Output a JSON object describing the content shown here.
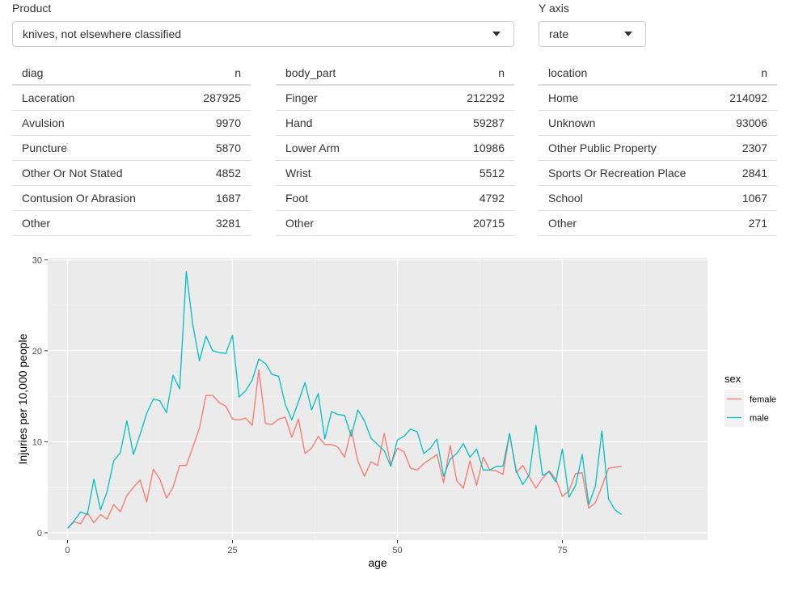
{
  "product": {
    "label": "Product",
    "value": "knives, not elsewhere classified"
  },
  "yaxis": {
    "label": "Y axis",
    "value": "rate"
  },
  "tables": [
    {
      "col1": "diag",
      "col2": "n",
      "rows": [
        {
          "name": "Laceration",
          "n": "287925"
        },
        {
          "name": "Avulsion",
          "n": "9970"
        },
        {
          "name": "Puncture",
          "n": "5870"
        },
        {
          "name": "Other Or Not Stated",
          "n": "4852"
        },
        {
          "name": "Contusion Or Abrasion",
          "n": "1687"
        },
        {
          "name": "Other",
          "n": "3281"
        }
      ]
    },
    {
      "col1": "body_part",
      "col2": "n",
      "rows": [
        {
          "name": "Finger",
          "n": "212292"
        },
        {
          "name": "Hand",
          "n": "59287"
        },
        {
          "name": "Lower Arm",
          "n": "10986"
        },
        {
          "name": "Wrist",
          "n": "5512"
        },
        {
          "name": "Foot",
          "n": "4792"
        },
        {
          "name": "Other",
          "n": "20715"
        }
      ]
    },
    {
      "col1": "location",
      "col2": "n",
      "rows": [
        {
          "name": "Home",
          "n": "214092"
        },
        {
          "name": "Unknown",
          "n": "93006"
        },
        {
          "name": "Other Public Property",
          "n": "2307"
        },
        {
          "name": "Sports Or Recreation Place",
          "n": "2841"
        },
        {
          "name": "School",
          "n": "1067"
        },
        {
          "name": "Other",
          "n": "271"
        }
      ]
    }
  ],
  "chart_data": {
    "type": "line",
    "xlabel": "age",
    "ylabel": "Injuries per 10,000 people",
    "xlim": [
      -3,
      97
    ],
    "ylim": [
      -0.8,
      30.2
    ],
    "xticks": [
      0,
      25,
      50,
      75
    ],
    "yticks": [
      0,
      10,
      20,
      30
    ],
    "grid": true,
    "legend_title": "sex",
    "legend_position": "right",
    "series": [
      {
        "name": "female",
        "color": "#F8766D",
        "x": [
          0,
          1,
          2,
          3,
          4,
          5,
          6,
          7,
          8,
          9,
          10,
          11,
          12,
          13,
          14,
          15,
          16,
          17,
          18,
          19,
          20,
          21,
          22,
          23,
          24,
          25,
          26,
          27,
          28,
          29,
          30,
          31,
          32,
          33,
          34,
          35,
          36,
          37,
          38,
          39,
          40,
          41,
          42,
          43,
          44,
          45,
          46,
          47,
          48,
          49,
          50,
          51,
          52,
          53,
          54,
          55,
          56,
          57,
          58,
          59,
          60,
          61,
          62,
          63,
          64,
          65,
          66,
          67,
          68,
          69,
          70,
          71,
          72,
          73,
          74,
          75,
          76,
          77,
          78,
          79,
          80,
          81,
          82,
          83,
          84
        ],
        "y": [
          0.5,
          1.2,
          1.0,
          2.2,
          1.1,
          2.0,
          1.5,
          3.1,
          2.3,
          4.1,
          5.0,
          5.8,
          3.4,
          7.0,
          5.9,
          3.8,
          5.0,
          7.4,
          7.4,
          9.4,
          11.5,
          15.1,
          15.1,
          14.3,
          13.9,
          12.5,
          12.4,
          12.6,
          11.8,
          17.9,
          12.0,
          11.9,
          12.5,
          12.7,
          10.5,
          12.5,
          8.7,
          9.3,
          10.6,
          9.7,
          9.7,
          9.4,
          8.3,
          11.3,
          7.9,
          6.2,
          7.8,
          7.4,
          10.9,
          7.5,
          9.3,
          8.9,
          7.1,
          6.9,
          7.6,
          8.1,
          8.6,
          5.5,
          9.6,
          5.7,
          4.9,
          7.9,
          5.2,
          8.3,
          6.9,
          6.8,
          6.4,
          10.9,
          6.6,
          7.4,
          6.1,
          4.9,
          6.0,
          6.8,
          5.9,
          4.0,
          4.6,
          6.5,
          6.6,
          2.7,
          3.3,
          5.1,
          7.1,
          7.2,
          7.3
        ]
      },
      {
        "name": "male",
        "color": "#00BFC4",
        "x": [
          0,
          1,
          2,
          3,
          4,
          5,
          6,
          7,
          8,
          9,
          10,
          11,
          12,
          13,
          14,
          15,
          16,
          17,
          18,
          19,
          20,
          21,
          22,
          23,
          24,
          25,
          26,
          27,
          28,
          29,
          30,
          31,
          32,
          33,
          34,
          35,
          36,
          37,
          38,
          39,
          40,
          41,
          42,
          43,
          44,
          45,
          46,
          47,
          48,
          49,
          50,
          51,
          52,
          53,
          54,
          55,
          56,
          57,
          58,
          59,
          60,
          61,
          62,
          63,
          64,
          65,
          66,
          67,
          68,
          69,
          70,
          71,
          72,
          73,
          74,
          75,
          76,
          77,
          78,
          79,
          80,
          81,
          82,
          83,
          84
        ],
        "y": [
          0.5,
          1.3,
          2.3,
          2.0,
          5.9,
          2.5,
          4.5,
          7.9,
          8.8,
          12.3,
          8.6,
          10.8,
          13.1,
          14.7,
          14.5,
          13.2,
          17.3,
          15.8,
          28.7,
          22.8,
          18.9,
          21.6,
          20.0,
          19.8,
          19.7,
          21.7,
          14.9,
          15.6,
          16.8,
          19.1,
          18.6,
          17.4,
          17.2,
          14.1,
          12.4,
          14.4,
          16.5,
          13.5,
          15.3,
          10.3,
          13.3,
          13.0,
          12.9,
          10.6,
          13.5,
          12.3,
          10.4,
          9.7,
          9.0,
          7.3,
          10.2,
          10.6,
          11.4,
          11.1,
          8.7,
          9.3,
          10.3,
          6.2,
          8.1,
          8.7,
          9.8,
          8.3,
          9.2,
          6.9,
          6.9,
          7.3,
          7.3,
          10.9,
          6.8,
          5.3,
          6.4,
          11.8,
          6.3,
          6.7,
          5.6,
          9.2,
          3.9,
          5.2,
          8.6,
          3.1,
          5.1,
          11.2,
          3.7,
          2.5,
          2.0
        ]
      }
    ]
  }
}
